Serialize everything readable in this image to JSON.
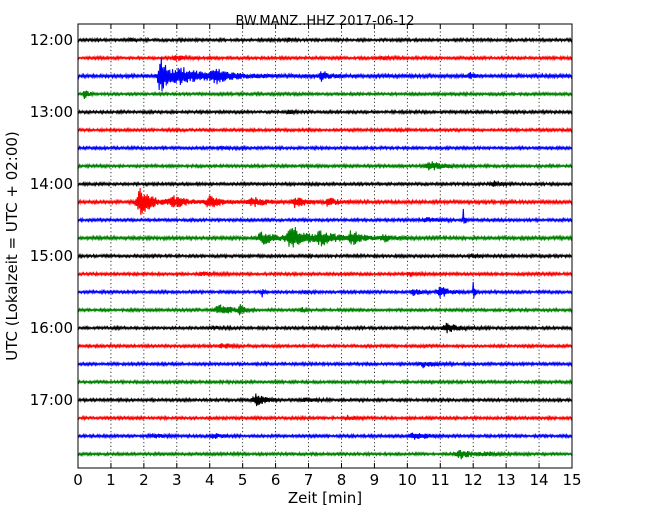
{
  "chart_data": {
    "type": "line",
    "title": "BW.MANZ..HHZ 2017-06-12",
    "xlabel": "Zeit  [min]",
    "ylabel": "UTC (Lokalzeit = UTC + 02:00)",
    "xlim": [
      0,
      15
    ],
    "x_ticks": [
      0,
      1,
      2,
      3,
      4,
      5,
      6,
      7,
      8,
      9,
      10,
      11,
      12,
      13,
      14,
      15
    ],
    "y_tick_labels": [
      "12:00",
      "13:00",
      "14:00",
      "15:00",
      "16:00",
      "17:00"
    ],
    "grid": {
      "x": true,
      "style": "dotted"
    },
    "trace_interval_min": 15,
    "trace_colors": [
      "#000000",
      "#ff0000",
      "#0000ff",
      "#008000"
    ],
    "series": [
      {
        "start": "12:00",
        "color": "#000000",
        "noise": 1.0,
        "events": [
          {
            "t": 1.6,
            "a": 2,
            "w": 0.1
          },
          {
            "t": 6.4,
            "a": 1.5,
            "w": 0.1
          }
        ]
      },
      {
        "start": "12:15",
        "color": "#ff0000",
        "noise": 1.0,
        "events": [
          {
            "t": 3.0,
            "a": 2,
            "w": 0.4
          },
          {
            "t": 9.2,
            "a": 1.5,
            "w": 0.3
          }
        ]
      },
      {
        "start": "12:30",
        "color": "#0000ff",
        "noise": 1.3,
        "events": [
          {
            "t": 2.5,
            "a": 22,
            "w": 0.2
          },
          {
            "t": 3.2,
            "a": 7,
            "w": 0.8
          },
          {
            "t": 4.2,
            "a": 5,
            "w": 0.4
          },
          {
            "t": 7.4,
            "a": 5,
            "w": 0.2
          },
          {
            "t": 11.9,
            "a": 3,
            "w": 0.1
          }
        ]
      },
      {
        "start": "12:45",
        "color": "#008000",
        "noise": 1.0,
        "events": [
          {
            "t": 0.2,
            "a": 4,
            "w": 0.1
          }
        ]
      },
      {
        "start": "13:00",
        "color": "#000000",
        "noise": 1.0,
        "events": [
          {
            "t": 6.4,
            "a": 2,
            "w": 0.1
          }
        ]
      },
      {
        "start": "13:15",
        "color": "#ff0000",
        "noise": 1.0,
        "events": []
      },
      {
        "start": "13:30",
        "color": "#0000ff",
        "noise": 1.0,
        "events": [
          {
            "t": 4.3,
            "a": 1.5,
            "w": 0.2
          }
        ]
      },
      {
        "start": "13:45",
        "color": "#008000",
        "noise": 1.0,
        "events": [
          {
            "t": 10.7,
            "a": 4,
            "w": 0.4
          }
        ]
      },
      {
        "start": "14:00",
        "color": "#000000",
        "noise": 1.0,
        "events": [
          {
            "t": 12.6,
            "a": 3,
            "w": 0.2
          }
        ]
      },
      {
        "start": "14:15",
        "color": "#ff0000",
        "noise": 1.2,
        "events": [
          {
            "t": 1.9,
            "a": 13,
            "w": 0.35
          },
          {
            "t": 2.9,
            "a": 5,
            "w": 0.4
          },
          {
            "t": 4.0,
            "a": 6,
            "w": 0.3
          },
          {
            "t": 5.3,
            "a": 5,
            "w": 0.3
          },
          {
            "t": 6.6,
            "a": 5,
            "w": 0.3
          },
          {
            "t": 7.6,
            "a": 5,
            "w": 0.2
          }
        ]
      },
      {
        "start": "14:30",
        "color": "#0000ff",
        "noise": 1.0,
        "events": [
          {
            "t": 10.6,
            "a": 2,
            "w": 0.3
          },
          {
            "t": 11.7,
            "a": 10,
            "w": 0.04
          }
        ]
      },
      {
        "start": "14:45",
        "color": "#008000",
        "noise": 1.2,
        "events": [
          {
            "t": 5.6,
            "a": 6,
            "w": 0.4
          },
          {
            "t": 6.5,
            "a": 12,
            "w": 0.45
          },
          {
            "t": 7.4,
            "a": 6,
            "w": 0.4
          },
          {
            "t": 8.3,
            "a": 8,
            "w": 0.25
          },
          {
            "t": 9.3,
            "a": 3,
            "w": 0.3
          }
        ]
      },
      {
        "start": "15:00",
        "color": "#000000",
        "noise": 1.0,
        "events": [
          {
            "t": 12.0,
            "a": 2,
            "w": 0.2
          }
        ]
      },
      {
        "start": "15:15",
        "color": "#ff0000",
        "noise": 1.0,
        "events": [
          {
            "t": 3.8,
            "a": 1.5,
            "w": 0.3
          },
          {
            "t": 10.1,
            "a": 1.5,
            "w": 0.2
          }
        ]
      },
      {
        "start": "15:30",
        "color": "#0000ff",
        "noise": 1.0,
        "events": [
          {
            "t": 5.6,
            "a": 5,
            "w": 0.05
          },
          {
            "t": 6.9,
            "a": 2,
            "w": 0.1
          },
          {
            "t": 10.2,
            "a": 3,
            "w": 0.2
          },
          {
            "t": 11.0,
            "a": 6,
            "w": 0.25
          },
          {
            "t": 12.0,
            "a": 16,
            "w": 0.04
          }
        ]
      },
      {
        "start": "15:45",
        "color": "#008000",
        "noise": 1.0,
        "events": [
          {
            "t": 4.3,
            "a": 5,
            "w": 0.35
          },
          {
            "t": 4.9,
            "a": 7,
            "w": 0.1
          },
          {
            "t": 6.8,
            "a": 2,
            "w": 0.1
          }
        ]
      },
      {
        "start": "16:00",
        "color": "#000000",
        "noise": 1.0,
        "events": [
          {
            "t": 4.1,
            "a": 1.5,
            "w": 0.2
          },
          {
            "t": 11.2,
            "a": 4,
            "w": 0.35
          }
        ]
      },
      {
        "start": "16:15",
        "color": "#ff0000",
        "noise": 1.0,
        "events": [
          {
            "t": 4.4,
            "a": 2,
            "w": 0.3
          }
        ]
      },
      {
        "start": "16:30",
        "color": "#0000ff",
        "noise": 1.0,
        "events": [
          {
            "t": 10.5,
            "a": 3,
            "w": 0.3
          }
        ]
      },
      {
        "start": "16:45",
        "color": "#008000",
        "noise": 1.0,
        "events": []
      },
      {
        "start": "17:00",
        "color": "#000000",
        "noise": 1.0,
        "events": [
          {
            "t": 5.4,
            "a": 6,
            "w": 0.25
          },
          {
            "t": 6.9,
            "a": 1.5,
            "w": 0.3
          }
        ]
      },
      {
        "start": "17:15",
        "color": "#ff0000",
        "noise": 1.0,
        "events": [
          {
            "t": 8.2,
            "a": 2,
            "w": 0.2
          }
        ]
      },
      {
        "start": "17:30",
        "color": "#0000ff",
        "noise": 1.0,
        "events": [
          {
            "t": 2.3,
            "a": 1.5,
            "w": 0.3
          },
          {
            "t": 4.1,
            "a": 3,
            "w": 0.2
          },
          {
            "t": 10.2,
            "a": 4,
            "w": 0.3
          }
        ]
      },
      {
        "start": "17:45",
        "color": "#008000",
        "noise": 1.0,
        "events": [
          {
            "t": 11.6,
            "a": 5,
            "w": 0.3
          },
          {
            "t": 12.4,
            "a": 2,
            "w": 0.3
          }
        ]
      }
    ]
  }
}
